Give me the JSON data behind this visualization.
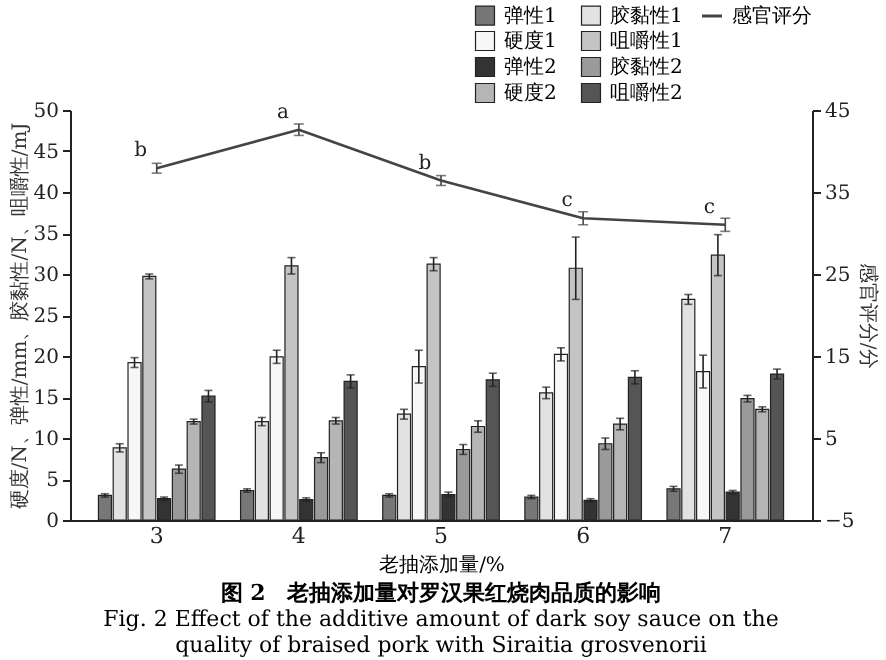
{
  "chart_data": {
    "type": "bar",
    "title": "图 2　老抽添加量对罗汉果红烧肉品质的影响",
    "subtitle": "Fig. 2 Effect of the additive amount of dark soy sauce on the quality of braised pork with Siraitia grosvenorii",
    "xlabel": "老抽添加量/%",
    "ylabel": "硬度/N、弹性/mm、胶黏性/N、咀嚼性/mJ",
    "y2label": "感官评分/分",
    "categories": [
      "3",
      "4",
      "5",
      "6",
      "7"
    ],
    "series": [
      {
        "name": "弹性1",
        "color": "#777777",
        "values": [
          3.0,
          3.6,
          3.0,
          2.8,
          3.8
        ],
        "errors": [
          0.2,
          0.2,
          0.2,
          0.2,
          0.3
        ]
      },
      {
        "name": "胶黏性1",
        "color": "#e2e2e2",
        "values": [
          8.8,
          12.0,
          12.9,
          15.5,
          26.9
        ],
        "errors": [
          0.5,
          0.5,
          0.6,
          0.7,
          0.6
        ]
      },
      {
        "name": "硬度1",
        "color": "#f7f7f7",
        "values": [
          19.2,
          19.9,
          18.7,
          20.2,
          18.1
        ],
        "errors": [
          0.6,
          0.8,
          2.0,
          0.8,
          2.0
        ]
      },
      {
        "name": "咀嚼性1",
        "color": "#c4c4c4",
        "values": [
          29.7,
          31.0,
          31.2,
          30.7,
          32.3
        ],
        "errors": [
          0.3,
          1.0,
          0.8,
          3.8,
          2.5
        ]
      },
      {
        "name": "弹性2",
        "color": "#333333",
        "values": [
          2.6,
          2.5,
          3.1,
          2.4,
          3.4
        ],
        "errors": [
          0.2,
          0.2,
          0.3,
          0.2,
          0.2
        ]
      },
      {
        "name": "胶黏性2",
        "color": "#9a9a9a",
        "values": [
          6.2,
          7.6,
          8.6,
          9.3,
          14.8
        ],
        "errors": [
          0.5,
          0.6,
          0.6,
          0.7,
          0.4
        ]
      },
      {
        "name": "硬度2",
        "color": "#b5b5b5",
        "values": [
          12.0,
          12.1,
          11.4,
          11.7,
          13.5
        ],
        "errors": [
          0.3,
          0.4,
          0.7,
          0.7,
          0.3
        ]
      },
      {
        "name": "咀嚼性2",
        "color": "#555555",
        "values": [
          15.1,
          16.9,
          17.1,
          17.4,
          17.8
        ],
        "errors": [
          0.7,
          0.8,
          0.8,
          0.8,
          0.6
        ]
      },
      {
        "name": "感官评分",
        "type": "line",
        "axis": "y2",
        "color": "#444444",
        "values": [
          37.9,
          42.6,
          36.4,
          31.8,
          31.0
        ],
        "errors": [
          0.6,
          0.7,
          0.6,
          0.8,
          0.8
        ]
      }
    ],
    "ylim": [
      0,
      50
    ],
    "yticks": [
      0,
      5,
      10,
      15,
      20,
      25,
      30,
      35,
      40,
      45,
      50
    ],
    "y2lim": [
      -5,
      45
    ],
    "y2ticks": [
      -5,
      5,
      15,
      25,
      35,
      45
    ],
    "annotations": [
      {
        "text": "b",
        "x": "3",
        "y": 42.9
      },
      {
        "text": "a",
        "x": "4",
        "y": 47.6
      },
      {
        "text": "b",
        "x": "5",
        "y": 41.4
      },
      {
        "text": "c",
        "x": "6",
        "y": 36.8
      },
      {
        "text": "c",
        "x": "7",
        "y": 36.0
      }
    ],
    "legend": "top right",
    "grid": false
  }
}
